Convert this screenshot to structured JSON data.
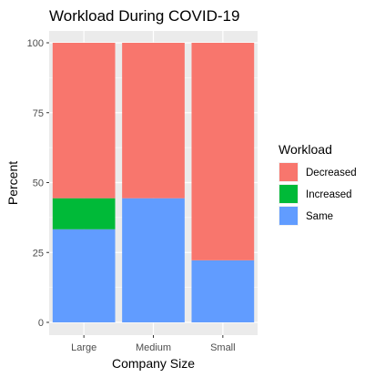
{
  "chart_data": {
    "type": "bar",
    "stacked": true,
    "title": "Workload During COVID-19",
    "xlabel": "Company Size",
    "ylabel": "Percent",
    "categories": [
      "Large",
      "Medium",
      "Small"
    ],
    "ylim": [
      0,
      100
    ],
    "yticks": [
      "0",
      "25",
      "50",
      "75",
      "100"
    ],
    "legend_title": "Workload",
    "legend_position": "right",
    "grid": true,
    "series": [
      {
        "name": "Same",
        "color": "#619CFF",
        "values": [
          33.3,
          44.4,
          22.2
        ]
      },
      {
        "name": "Increased",
        "color": "#00BA38",
        "values": [
          11.1,
          0,
          0
        ]
      },
      {
        "name": "Decreased",
        "color": "#F8766D",
        "values": [
          55.6,
          55.6,
          77.8
        ]
      }
    ],
    "legend_order": [
      "Decreased",
      "Increased",
      "Same"
    ]
  }
}
